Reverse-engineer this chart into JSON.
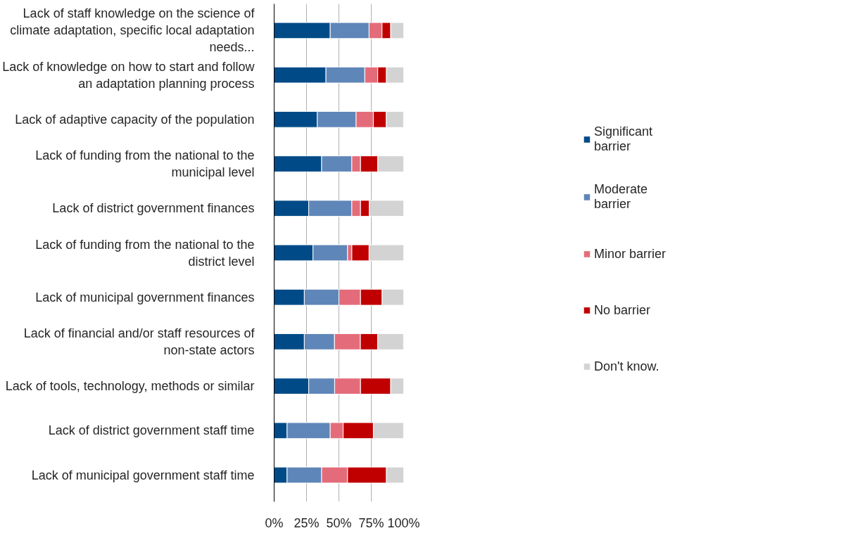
{
  "chart_data": {
    "type": "bar",
    "orientation": "horizontal",
    "stacked": true,
    "categories": [
      "Lack of staff knowledge on the science of climate adaptation, specific local adaptation needs...",
      "Lack of knowledge on how to start and follow an adaptation planning process",
      "Lack of adaptive capacity of the population",
      "Lack of funding from the national to the municipal level",
      "Lack of district government finances",
      "Lack of funding from the national to the district level",
      "Lack of municipal government finances",
      "Lack of financial and/or staff resources of non-state actors",
      "Lack of tools, technology, methods or similar",
      "Lack of district government staff time",
      "Lack of municipal government staff time"
    ],
    "series": [
      {
        "name": "Significant barrier",
        "color": "#004b87",
        "values": [
          43.3,
          40,
          33.3,
          36.7,
          26.7,
          30,
          23.3,
          23.3,
          26.7,
          10,
          10
        ]
      },
      {
        "name": "Moderate barrier",
        "color": "#5f86b8",
        "values": [
          30,
          30,
          30,
          23.3,
          33.3,
          26.7,
          26.7,
          23.3,
          20,
          33.3,
          26.7
        ]
      },
      {
        "name": "Minor barrier",
        "color": "#e46c7a",
        "values": [
          10,
          10,
          13.3,
          6.7,
          6.7,
          3.3,
          16.7,
          20,
          20,
          10,
          20
        ]
      },
      {
        "name": "No barrier",
        "color": "#c00000",
        "values": [
          6.7,
          6.7,
          10,
          13.3,
          6.7,
          13.3,
          16.7,
          13.3,
          23.3,
          23.3,
          30
        ]
      },
      {
        "name": "Don't know.",
        "color": "#d3d3d3",
        "values": [
          10,
          13.3,
          13.3,
          20,
          26.7,
          26.7,
          16.7,
          20,
          10,
          23.3,
          13.3
        ]
      }
    ],
    "xlim": [
      0,
      100
    ],
    "xticks": [
      {
        "value": 0,
        "label": "0%"
      },
      {
        "value": 25,
        "label": "25%"
      },
      {
        "value": 50,
        "label": "50%"
      },
      {
        "value": 75,
        "label": "75%"
      },
      {
        "value": 100,
        "label": "100%"
      }
    ],
    "grid": "x",
    "legend": "right"
  }
}
